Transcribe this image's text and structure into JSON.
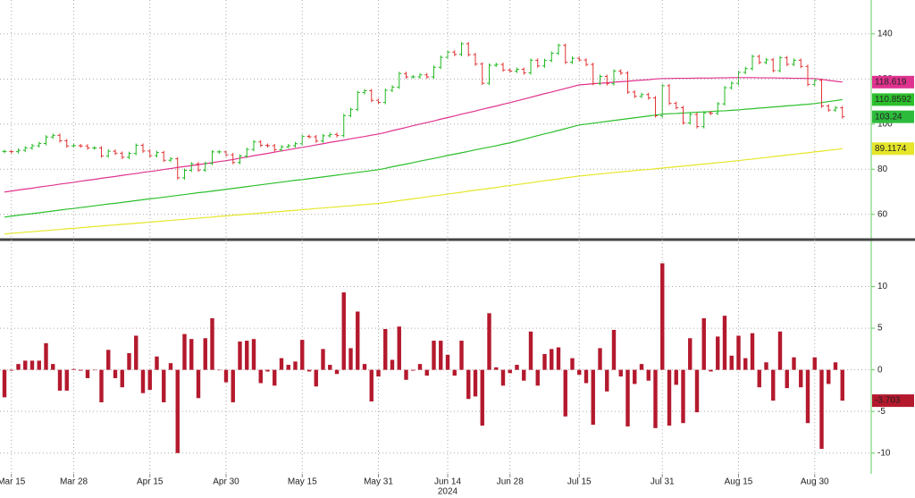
{
  "chart_data": [
    {
      "type": "ohlc",
      "values": [
        87.9,
        87.8,
        88.4,
        89.4,
        90.4,
        91.4,
        94.3,
        95.0,
        92.6,
        90.3,
        90.4,
        90.3,
        89.4,
        89.4,
        85.9,
        88.0,
        87.1,
        85.3,
        87.0,
        90.6,
        88.1,
        86.0,
        87.4,
        84.0,
        84.6,
        76.2,
        79.5,
        82.4,
        79.6,
        82.6,
        87.7,
        87.7,
        86.4,
        83.0,
        85.8,
        88.8,
        92.1,
        90.6,
        90.4,
        88.7,
        89.9,
        90.4,
        91.3,
        94.6,
        94.4,
        92.5,
        94.8,
        95.4,
        94.9,
        103.8,
        106.5,
        114.0,
        114.8,
        110.5,
        109.6,
        115.0,
        116.4,
        122.4,
        120.9,
        120.9,
        121.8,
        120.9,
        125.2,
        129.6,
        131.9,
        130.9,
        135.6,
        130.8,
        126.6,
        118.1,
        126.1,
        126.4,
        124.0,
        123.5,
        124.3,
        122.7,
        128.3,
        125.8,
        128.2,
        131.4,
        134.9,
        127.4,
        129.2,
        128.4,
        126.4,
        118.0,
        121.1,
        117.9,
        123.5,
        122.6,
        114.2,
        112.3,
        113.1,
        111.6,
        103.7,
        117.0,
        109.2,
        107.3,
        100.5,
        104.3,
        98.9,
        105.0,
        104.8,
        109.0,
        116.1,
        118.1,
        122.9,
        124.6,
        130.0,
        127.3,
        128.5,
        123.7,
        129.4,
        126.5,
        128.3,
        125.6,
        117.6,
        119.4,
        108.0,
        106.2,
        107.2,
        103.24
      ],
      "up_color": "#22b922",
      "down_color": "#e03333",
      "last_label_color": "#2dbb3c",
      "series": [
        {
          "color": "#e0338f",
          "values": [
            69.9,
            70.3,
            70.8,
            71.2,
            71.6,
            72.1,
            72.5,
            72.9,
            73.4,
            73.8,
            74.2,
            74.7,
            75.1,
            75.5,
            76.0,
            76.4,
            76.8,
            77.3,
            77.7,
            78.1,
            78.6,
            79.0,
            79.4,
            79.9,
            80.3,
            80.8,
            81.2,
            81.6,
            82.0,
            82.5,
            82.9,
            83.4,
            83.8,
            84.3,
            84.9,
            85.4,
            86.0,
            86.5,
            87.0,
            87.6,
            88.1,
            88.6,
            89.2,
            89.7,
            90.2,
            90.8,
            91.3,
            91.9,
            92.4,
            92.9,
            93.5,
            94.0,
            94.5,
            95.1,
            95.6,
            96.3,
            97.1,
            97.8,
            98.5,
            99.3,
            100.0,
            100.7,
            101.4,
            102.2,
            102.9,
            103.6,
            104.4,
            105.1,
            105.8,
            106.6,
            107.3,
            108.0,
            108.8,
            109.5,
            110.3,
            111.1,
            111.9,
            112.7,
            113.5,
            114.2,
            115.0,
            115.8,
            116.6,
            117.4,
            117.6,
            117.9,
            118.1,
            118.3,
            118.6,
            118.8,
            119.0,
            119.3,
            119.5,
            119.7,
            120.0,
            120.2,
            120.2,
            120.3,
            120.3,
            120.3,
            120.4,
            120.4,
            120.4,
            120.5,
            120.5,
            120.6,
            120.6,
            120.6,
            120.6,
            120.5,
            120.5,
            120.5,
            120.4,
            120.4,
            120.3,
            120.3,
            120.2,
            120.2,
            119.8,
            119.4,
            119.0,
            118.619
          ]
        },
        {
          "color": "#2cbf2c",
          "values": [
            58.8,
            59.2,
            59.6,
            60.0,
            60.3,
            60.7,
            61.1,
            61.5,
            61.9,
            62.3,
            62.6,
            63.0,
            63.4,
            63.8,
            64.2,
            64.6,
            64.9,
            65.3,
            65.7,
            66.1,
            66.5,
            66.9,
            67.2,
            67.6,
            68.0,
            68.4,
            68.8,
            69.2,
            69.6,
            69.9,
            70.3,
            70.7,
            71.1,
            71.5,
            71.9,
            72.3,
            72.7,
            73.1,
            73.5,
            73.9,
            74.3,
            74.7,
            75.1,
            75.4,
            75.8,
            76.2,
            76.6,
            77.0,
            77.4,
            77.8,
            78.2,
            78.6,
            79.0,
            79.4,
            79.8,
            80.4,
            81.1,
            81.7,
            82.3,
            82.9,
            83.6,
            84.2,
            84.8,
            85.4,
            86.1,
            86.7,
            87.3,
            87.9,
            88.6,
            89.2,
            89.8,
            90.4,
            91.1,
            91.7,
            92.5,
            93.3,
            94.1,
            94.9,
            95.7,
            96.4,
            97.2,
            98.0,
            98.8,
            99.6,
            100.0,
            100.4,
            100.8,
            101.2,
            101.6,
            102.0,
            102.4,
            102.8,
            103.2,
            103.6,
            104.0,
            104.4,
            104.6,
            104.7,
            104.9,
            105.1,
            105.3,
            105.4,
            105.6,
            105.8,
            105.9,
            106.1,
            106.3,
            106.6,
            106.8,
            107.1,
            107.3,
            107.6,
            107.8,
            108.1,
            108.3,
            108.6,
            108.8,
            109.1,
            109.5,
            110.0,
            110.4,
            110.8592
          ]
        },
        {
          "color": "#e6e62a",
          "values": [
            51.3,
            51.6,
            51.8,
            52.1,
            52.3,
            52.6,
            52.8,
            53.1,
            53.3,
            53.6,
            53.8,
            54.1,
            54.3,
            54.6,
            54.8,
            55.1,
            55.3,
            55.6,
            55.8,
            56.1,
            56.3,
            56.6,
            56.8,
            57.1,
            57.3,
            57.6,
            57.8,
            58.1,
            58.3,
            58.6,
            58.8,
            59.1,
            59.3,
            59.6,
            59.8,
            60.1,
            60.3,
            60.6,
            60.8,
            61.1,
            61.3,
            61.6,
            61.8,
            62.1,
            62.3,
            62.6,
            62.8,
            63.1,
            63.3,
            63.6,
            63.8,
            64.1,
            64.3,
            64.6,
            64.8,
            65.2,
            65.6,
            66.1,
            66.5,
            66.9,
            67.3,
            67.7,
            68.2,
            68.6,
            69.0,
            69.4,
            69.8,
            70.3,
            70.7,
            71.1,
            71.5,
            71.9,
            72.4,
            72.8,
            73.2,
            73.6,
            74.0,
            74.5,
            74.9,
            75.3,
            75.7,
            76.2,
            76.6,
            77.0,
            77.3,
            77.6,
            77.9,
            78.2,
            78.5,
            78.8,
            79.1,
            79.4,
            79.7,
            79.9,
            80.2,
            80.5,
            80.8,
            81.1,
            81.4,
            81.7,
            82.0,
            82.3,
            82.6,
            82.9,
            83.2,
            83.5,
            83.8,
            84.2,
            84.5,
            84.9,
            85.2,
            85.6,
            85.9,
            86.3,
            86.6,
            87.0,
            87.3,
            87.7,
            88.0,
            88.4,
            88.7,
            89.1174
          ]
        }
      ],
      "ylim": [
        50,
        155
      ],
      "yticks": [
        60,
        80,
        100,
        120,
        140
      ],
      "grid": true
    },
    {
      "type": "bar",
      "categories": [
        null,
        "Mar 15",
        null,
        null,
        null,
        null,
        null,
        null,
        null,
        null,
        "Mar 28",
        null,
        null,
        null,
        null,
        null,
        null,
        null,
        null,
        null,
        null,
        "Apr 15",
        null,
        null,
        null,
        null,
        null,
        null,
        null,
        null,
        null,
        null,
        "Apr 30",
        null,
        null,
        null,
        null,
        null,
        null,
        null,
        null,
        null,
        null,
        "May 15",
        null,
        null,
        null,
        null,
        null,
        null,
        null,
        null,
        null,
        null,
        "May 31",
        null,
        null,
        null,
        null,
        null,
        null,
        null,
        null,
        null,
        "Jun 14",
        null,
        null,
        null,
        null,
        null,
        null,
        null,
        null,
        "Jun 28",
        null,
        null,
        null,
        null,
        null,
        null,
        null,
        null,
        null,
        "Jul 15",
        null,
        null,
        null,
        null,
        null,
        null,
        null,
        null,
        null,
        null,
        null,
        "Jul 31",
        null,
        null,
        null,
        null,
        null,
        null,
        null,
        null,
        null,
        null,
        "Aug 15",
        null,
        null,
        null,
        null,
        null,
        null,
        null,
        null,
        null,
        null,
        "Aug 30",
        null,
        null,
        null,
        null
      ],
      "year_label": "2024",
      "values": [
        -3.3,
        -0.1,
        0.7,
        1.1,
        1.1,
        1.1,
        3.2,
        0.7,
        -2.5,
        -2.5,
        0.1,
        -0.1,
        -1.0,
        0.0,
        -3.9,
        2.4,
        -1.0,
        -2.1,
        2.0,
        4.1,
        -2.8,
        -2.4,
        1.6,
        -3.9,
        0.8,
        -10.0,
        4.3,
        3.7,
        -3.4,
        3.8,
        6.2,
        0.0,
        -1.5,
        -3.9,
        3.4,
        3.5,
        3.7,
        -1.6,
        -0.2,
        -1.9,
        1.4,
        0.6,
        1.0,
        3.6,
        -0.2,
        -2.0,
        2.5,
        0.6,
        -0.5,
        9.3,
        2.6,
        7.0,
        0.7,
        -3.8,
        -0.8,
        4.9,
        1.2,
        5.2,
        -1.2,
        -0.1,
        0.7,
        -0.7,
        3.5,
        3.5,
        1.8,
        -0.7,
        3.5,
        -3.5,
        -3.2,
        -6.7,
        6.8,
        0.3,
        -1.9,
        -0.4,
        0.6,
        -1.3,
        4.6,
        -1.9,
        1.9,
        2.5,
        2.7,
        -5.6,
        1.4,
        -0.6,
        -1.6,
        -6.6,
        2.6,
        -2.6,
        4.8,
        -0.8,
        -6.8,
        -1.7,
        0.7,
        -1.3,
        -7.0,
        12.8,
        -6.7,
        -1.8,
        -6.4,
        3.8,
        -5.1,
        6.2,
        -0.2,
        4.0,
        6.5,
        1.7,
        4.1,
        1.4,
        4.4,
        -2.1,
        0.9,
        -3.7,
        4.6,
        -2.2,
        1.5,
        -2.1,
        -6.4,
        1.5,
        -9.5,
        -1.7,
        0.9,
        -3.703
      ],
      "color": "#b4192d",
      "ylim": [
        -12.5,
        15
      ],
      "yticks": [
        -10,
        -5,
        0,
        5,
        10
      ],
      "grid": true
    }
  ]
}
